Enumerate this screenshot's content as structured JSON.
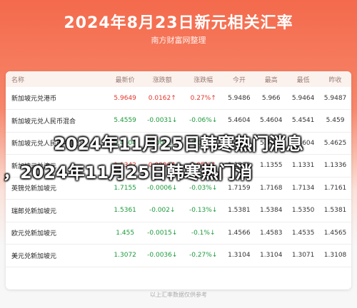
{
  "header": {
    "title": "2024年8月23日新元相关汇率",
    "subtitle": "南方财富网整理"
  },
  "table": {
    "columns": [
      "名称",
      "最新价",
      "涨跌额",
      "涨跌幅",
      "今开",
      "最高",
      "最低",
      "昨收"
    ],
    "rows": [
      {
        "name": "新加坡元兑港币",
        "price": "5.9649",
        "change": "0.0162↑",
        "pct": "0.27%↑",
        "open": "5.9486",
        "high": "5.966",
        "low": "5.9464",
        "prev": "5.9487",
        "dir": "up"
      },
      {
        "name": "新加坡元兑人民币混合",
        "price": "5.4559",
        "change": "-0.0031↓",
        "pct": "-0.06%↓",
        "open": "5.4604",
        "high": "5.4604",
        "low": "5.4541",
        "prev": "5.459",
        "dir": "down"
      },
      {
        "name": "新加坡元兑人民币中间价",
        "price": "5.4604",
        "change": "-0.0021↓",
        "pct": "-0.04%↓",
        "open": "5.4604",
        "high": "5.4604",
        "low": "5.4604",
        "prev": "5.4625",
        "dir": "down"
      },
      {
        "name": "新加坡元兑澳元",
        "price": "1.1342",
        "change": "0.0006↑",
        "pct": "0.05%↑",
        "open": "1.1336",
        "high": "1.1355",
        "low": "1.1331",
        "prev": "1.1336",
        "dir": "up"
      },
      {
        "name": "英镑兑新加坡元",
        "price": "1.7155",
        "change": "-0.0006↓",
        "pct": "-0.03%↓",
        "open": "1.7159",
        "high": "1.7168",
        "low": "1.7134",
        "prev": "1.7161",
        "dir": "down"
      },
      {
        "name": "瑞郎兑新加坡元",
        "price": "1.5361",
        "change": "-0.002↓",
        "pct": "-0.13%↓",
        "open": "1.5381",
        "high": "1.5384",
        "low": "1.5350",
        "prev": "1.5381",
        "dir": "down"
      },
      {
        "name": "欧元兑新加坡元",
        "price": "1.455",
        "change": "-0.0015↓",
        "pct": "-0.1%↓",
        "open": "1.4566",
        "high": "1.4583",
        "low": "1.4535",
        "prev": "1.4565",
        "dir": "down"
      },
      {
        "name": "美元兑新加坡元",
        "price": "1.3072",
        "change": "-0.0036↓",
        "pct": "-0.27%↓",
        "open": "1.3104",
        "high": "1.3104",
        "low": "1.3071",
        "prev": "1.3108",
        "dir": "down"
      }
    ]
  },
  "footer": "以上汇率数据仅供参考",
  "overlay": {
    "line1": "2024年11月25日韩寒热门消息",
    "line2": "，2024年11月25日韩寒热门消"
  }
}
